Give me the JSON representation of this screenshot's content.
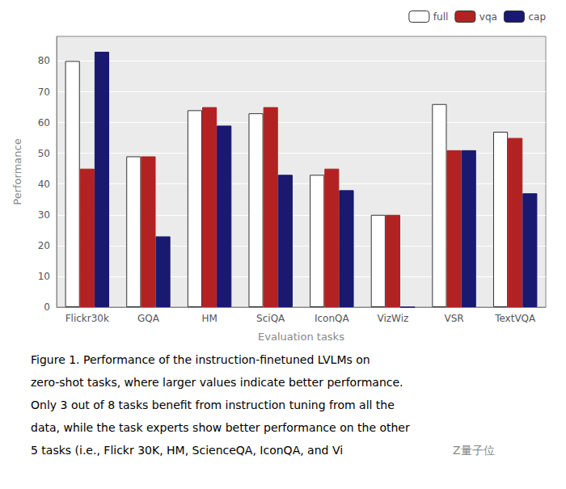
{
  "chart_data": {
    "type": "bar",
    "categories": [
      "Flickr30k",
      "GQA",
      "HM",
      "SciQA",
      "IconQA",
      "VizWiz",
      "VSR",
      "TextVQA"
    ],
    "series": [
      {
        "name": "full",
        "color": "#ffffff",
        "values": [
          80,
          49,
          64,
          63,
          43,
          30,
          66,
          57
        ]
      },
      {
        "name": "vqa",
        "color": "#b22222",
        "values": [
          45,
          49,
          65,
          65,
          45,
          30,
          51,
          55
        ]
      },
      {
        "name": "cap",
        "color": "#191970",
        "values": [
          83,
          23,
          59,
          43,
          38,
          0,
          51,
          37
        ]
      }
    ],
    "xlabel": "Evaluation tasks",
    "ylabel": "Performance",
    "ylim": [
      0,
      88
    ],
    "yticks": [
      0,
      10,
      20,
      30,
      40,
      50,
      60,
      70,
      80
    ],
    "grid": true,
    "legend": "top-right",
    "annotations": [
      "Figure 1. Performance of the instruction-finetuned LVLMs on",
      "zero-shot tasks, where larger values indicate better performance.",
      "Only 3 out of 8 tasks benefit from instruction tuning from all the",
      "data, while the task experts show better performance on the other",
      "5 tasks (i.e., Flickr 30K, HM, ScienceQA, IconQA, and Vi",
      "Z量子位"
    ]
  }
}
